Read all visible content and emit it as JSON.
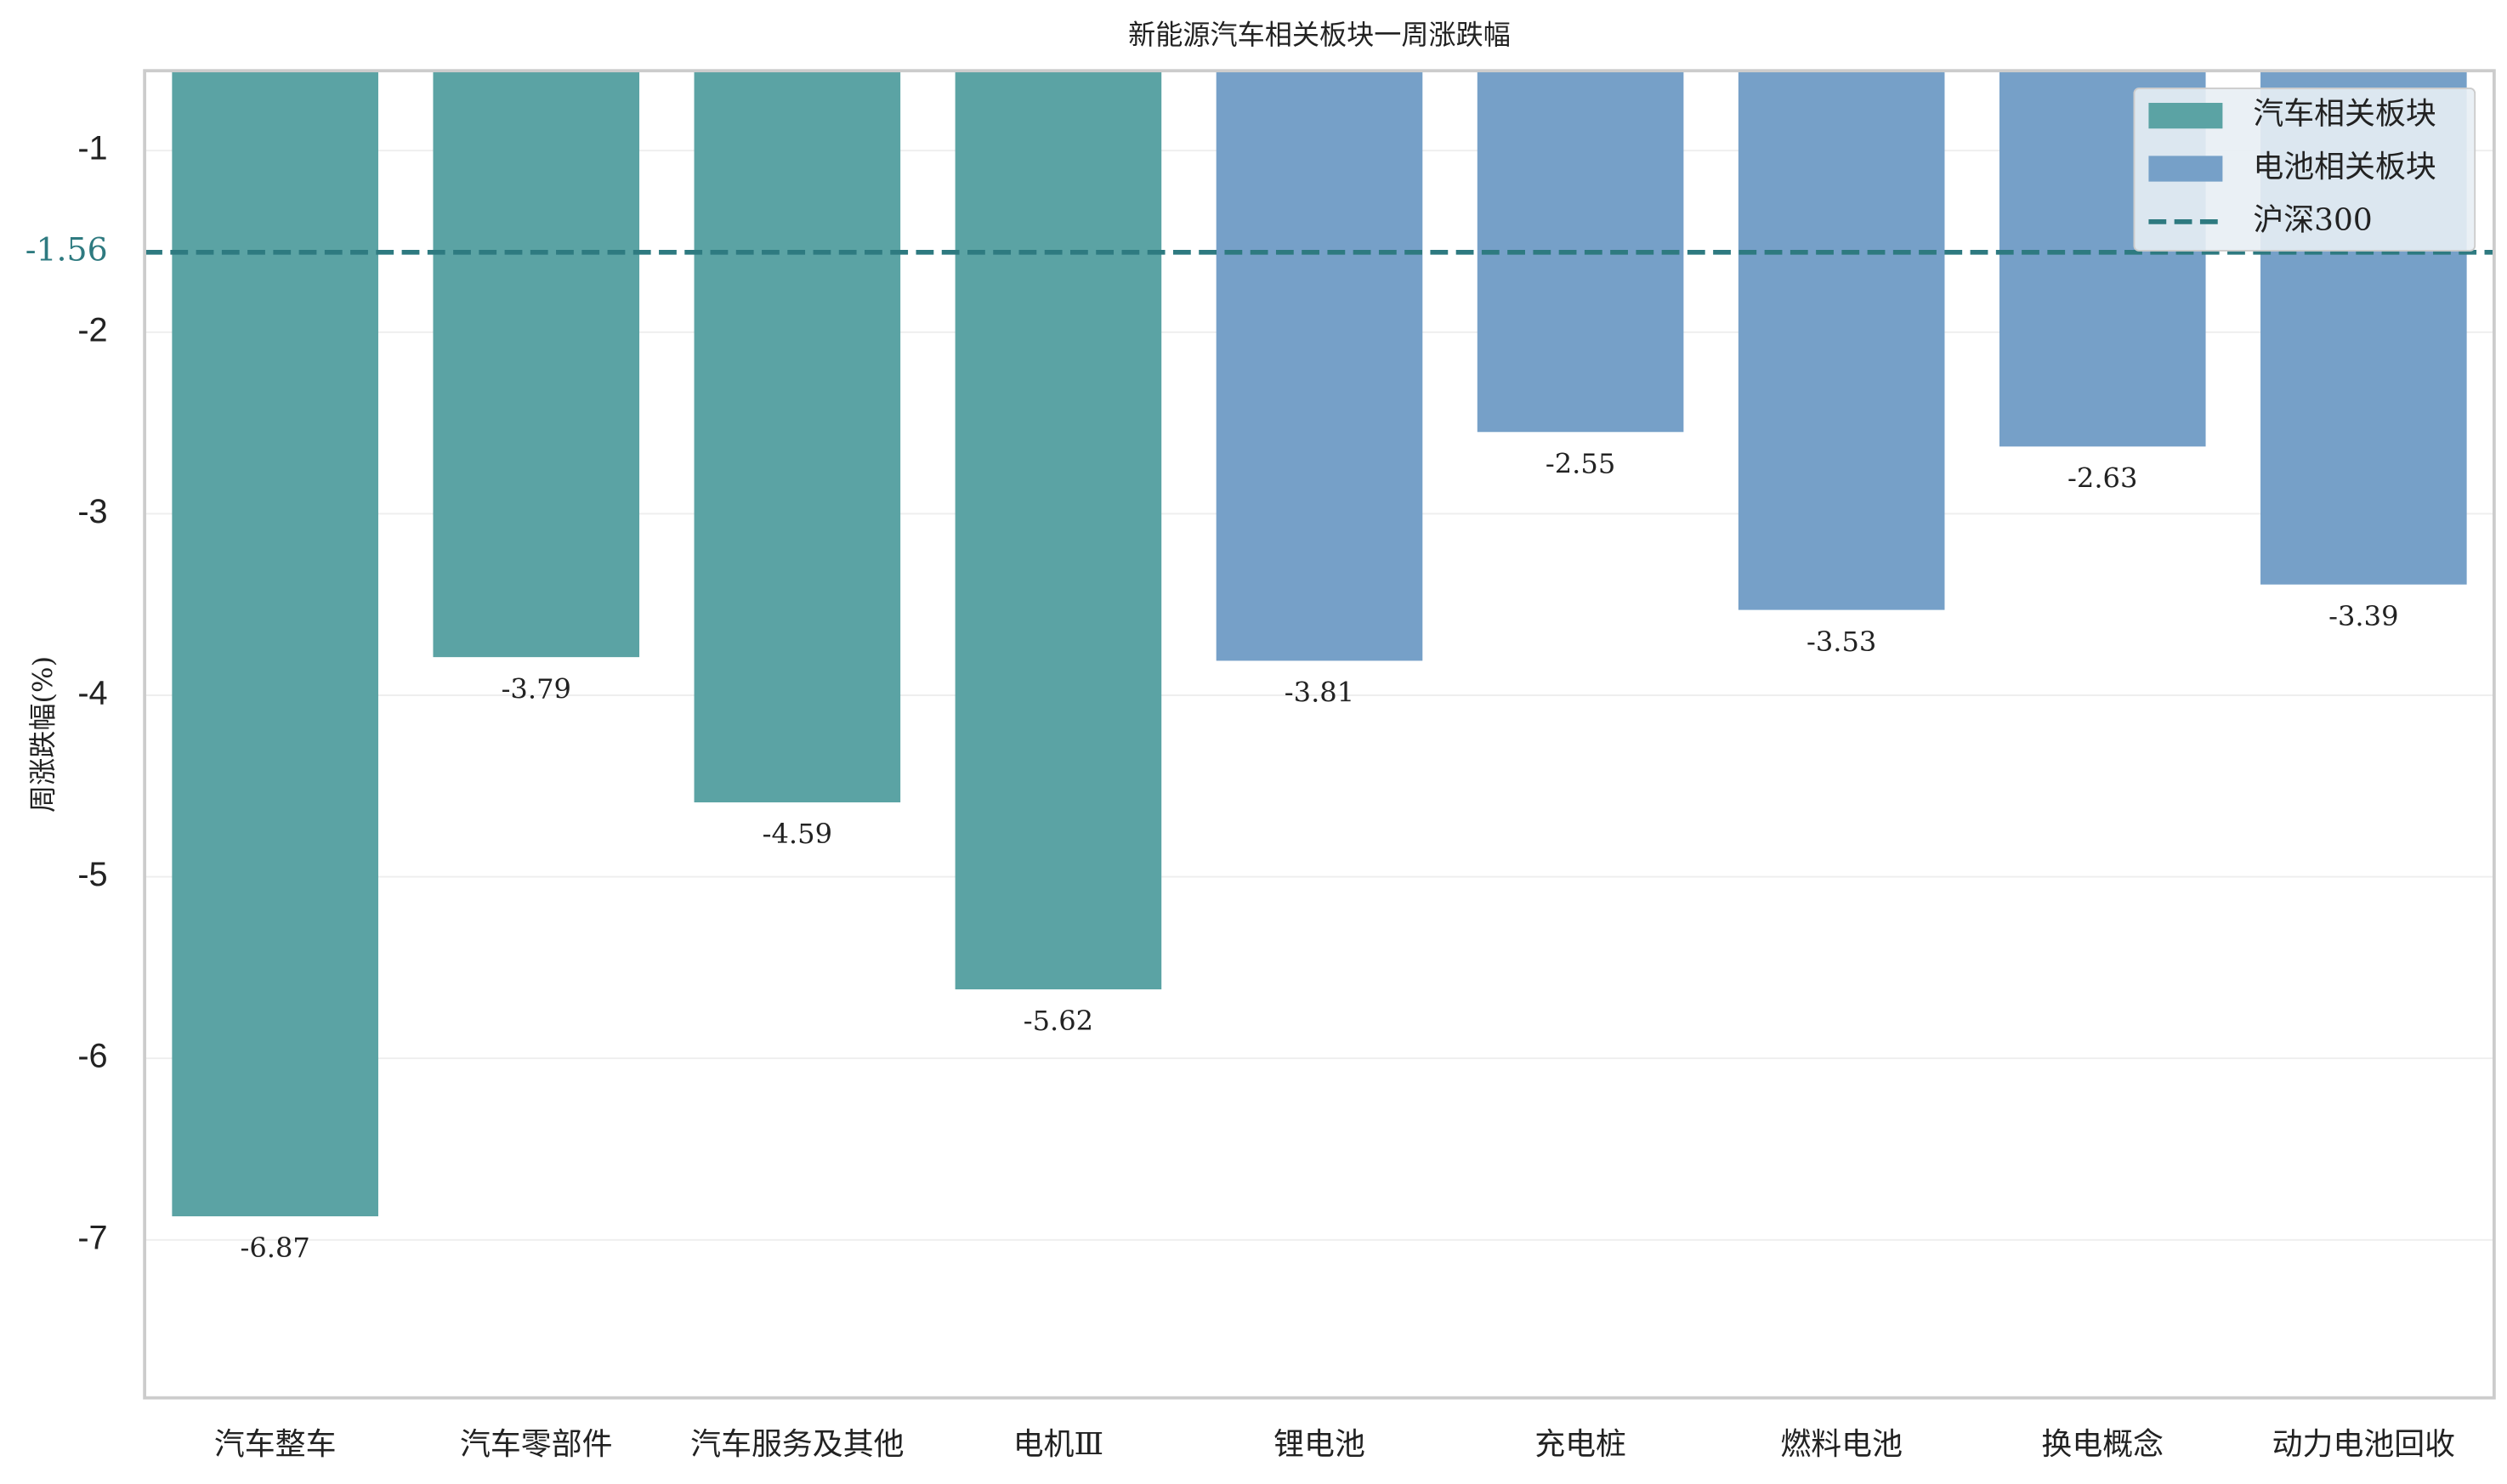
{
  "chart_data": {
    "type": "bar",
    "title": "新能源汽车相关板块一周涨跌幅",
    "y_label": "周涨跌幅(%)",
    "categories": [
      "汽车整车",
      "汽车零部件",
      "汽车服务及其他",
      "电机Ⅲ",
      "锂电池",
      "充电桩",
      "燃料电池",
      "换电概念",
      "动力电池回收"
    ],
    "series": [
      {
        "name": "汽车相关板块",
        "color": "#5ba3a4",
        "values": [
          -6.87,
          -3.79,
          -4.59,
          -5.62,
          null,
          null,
          null,
          null,
          null
        ]
      },
      {
        "name": "电池相关板块",
        "color": "#76a0c8",
        "values": [
          null,
          null,
          null,
          null,
          -3.81,
          -2.55,
          -3.53,
          -2.63,
          -3.39
        ]
      }
    ],
    "reference_line": {
      "name": "沪深300",
      "value": -1.56,
      "color": "#2e7a80"
    },
    "ylim": [
      -7.87,
      -0.56
    ],
    "yticks": [
      -7,
      -6,
      -5,
      -4,
      -3,
      -2,
      -1
    ],
    "grid": true,
    "legend": "upper right"
  }
}
